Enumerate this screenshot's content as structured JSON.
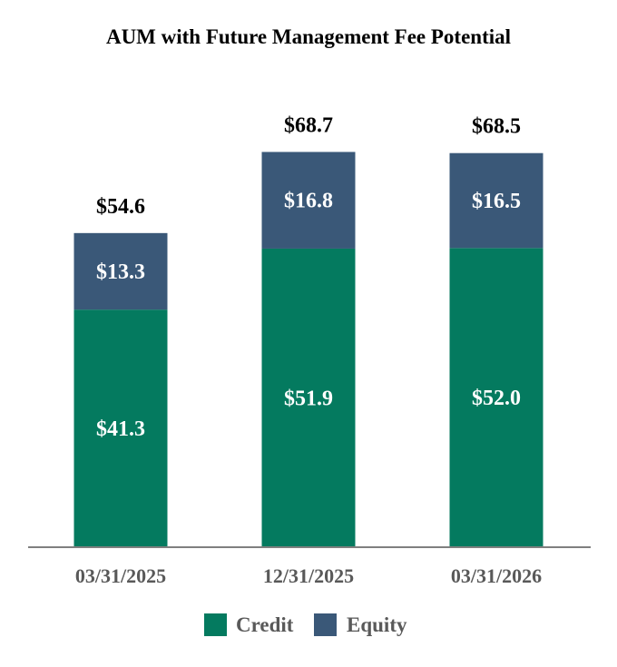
{
  "chart_data": {
    "type": "bar",
    "stacked": true,
    "title": "AUM with Future Management Fee Potential",
    "categories": [
      "03/31/2025",
      "12/31/2025",
      "03/31/2026"
    ],
    "series": [
      {
        "name": "Credit",
        "values": [
          41.3,
          51.9,
          52.0
        ],
        "labels": [
          "$41.3",
          "$51.9",
          "$52.0"
        ],
        "color": "#047a5f"
      },
      {
        "name": "Equity",
        "values": [
          13.3,
          16.8,
          16.5
        ],
        "labels": [
          "$13.3",
          "$16.8",
          "$16.5"
        ],
        "color": "#3a5878"
      }
    ],
    "totals": [
      54.6,
      68.7,
      68.5
    ],
    "total_labels": [
      "$54.6",
      "$68.7",
      "$68.5"
    ],
    "ylim": [
      0,
      70
    ],
    "grid": false,
    "legend": "bottom-center",
    "axis_color": "#7f7f7f"
  }
}
